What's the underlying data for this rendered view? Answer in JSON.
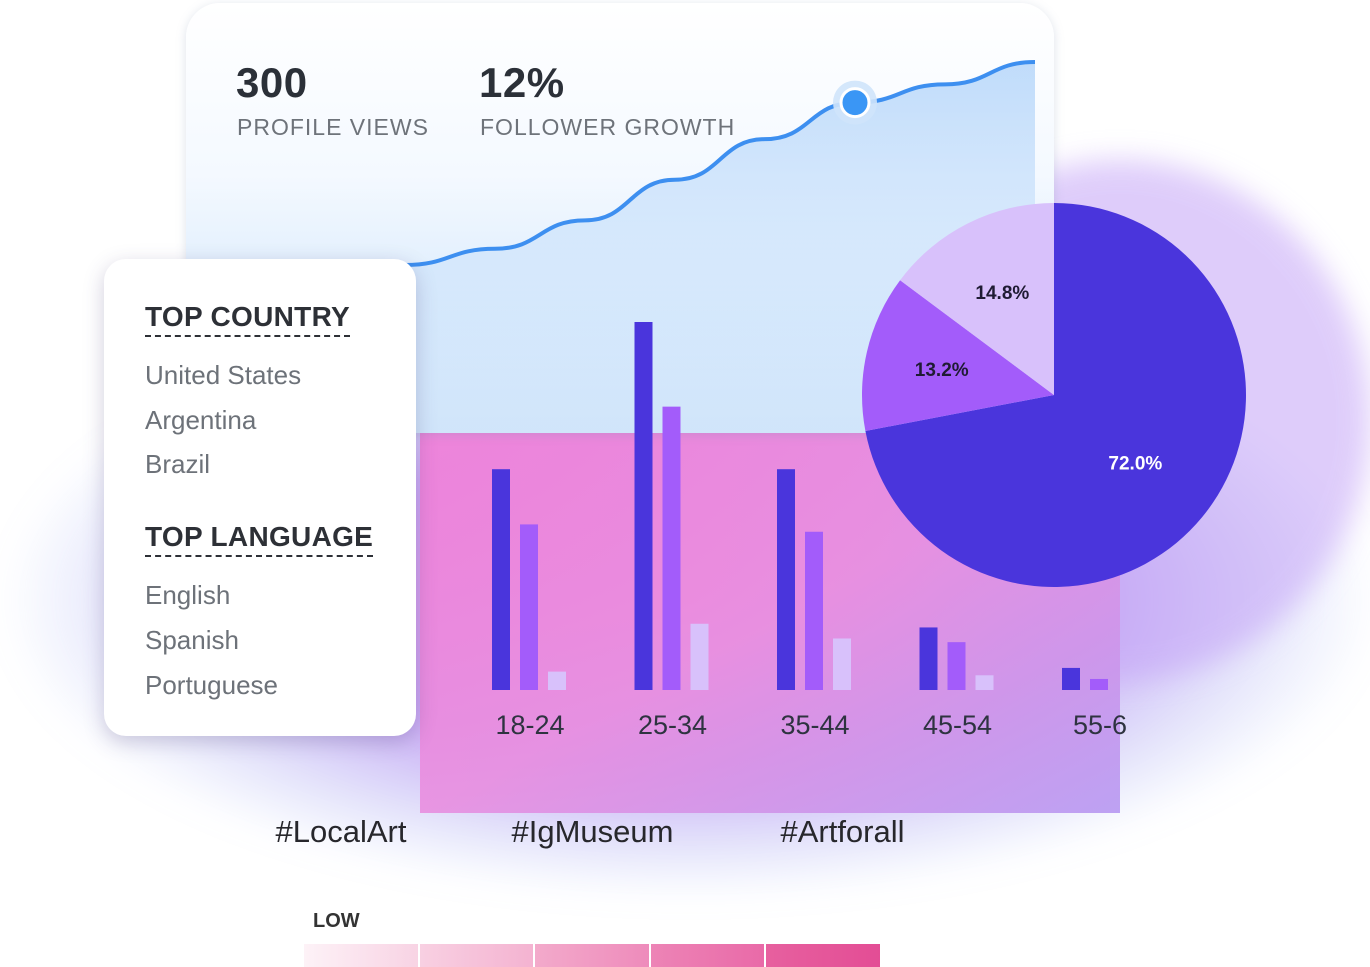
{
  "stats": [
    {
      "value": "300",
      "label": "PROFILE VIEWS"
    },
    {
      "value": "12%",
      "label": "FOLLOWER GROWTH"
    }
  ],
  "top_country": {
    "title": "TOP COUNTRY",
    "items": [
      "United States",
      "Argentina",
      "Brazil"
    ]
  },
  "top_language": {
    "title": "TOP LANGUAGE",
    "items": [
      "English",
      "Spanish",
      "Portuguese"
    ]
  },
  "hashtags": [
    {
      "label": "#LocalArt",
      "color": "#f29ec5"
    },
    {
      "label": "#IgMuseum",
      "color": "#ef78b0"
    },
    {
      "label": "#Artforall",
      "color": "#e8559a"
    }
  ],
  "legend": {
    "low_label": "LOW"
  },
  "colors": {
    "primary": "#4a35dc",
    "secondary": "#a35cfa",
    "tertiary": "#d8c1fb",
    "line": "#3d8ff0",
    "pink_panel": "#ea7fd6"
  },
  "chart_data": [
    {
      "type": "bar",
      "categories": [
        "18-24",
        "25-34",
        "35-44",
        "45-54",
        "55-6"
      ],
      "series": [
        {
          "values": [
            60,
            100,
            60,
            17,
            6
          ]
        },
        {
          "values": [
            45,
            77,
            43,
            13,
            3
          ]
        },
        {
          "values": [
            5,
            18,
            14,
            4,
            0
          ]
        }
      ],
      "ylim": [
        0,
        100
      ]
    },
    {
      "type": "pie",
      "slices": [
        {
          "label": "72.0%",
          "value": 72.0
        },
        {
          "label": "13.2%",
          "value": 13.2
        },
        {
          "label": "14.8%",
          "value": 14.8
        }
      ]
    },
    {
      "type": "line",
      "values": [
        0.0,
        0.08,
        0.22,
        0.42,
        0.62,
        0.8,
        0.89,
        1.0
      ],
      "highlight_index": 5
    }
  ]
}
